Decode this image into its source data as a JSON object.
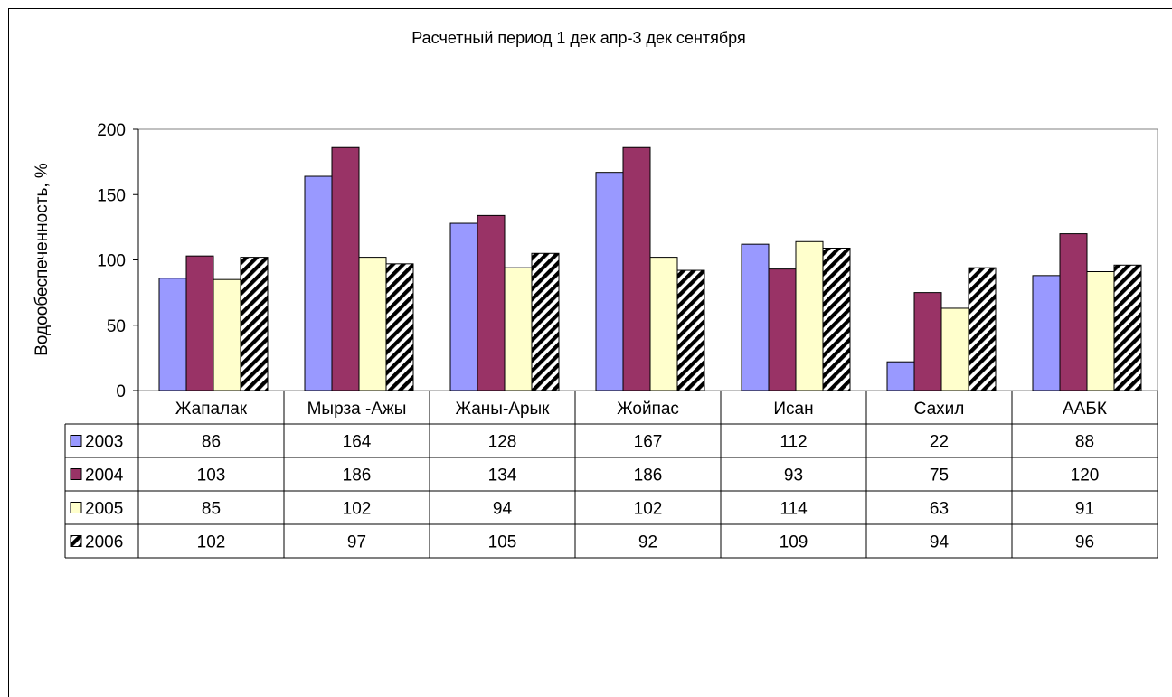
{
  "chart_data": {
    "type": "bar",
    "title": "Расчетный период 1 дек апр-3 дек сентября",
    "ylabel": "Водообеспеченность, %",
    "xlabel": "",
    "ylim": [
      0,
      200
    ],
    "yticks": [
      0,
      50,
      100,
      150,
      200
    ],
    "grid": false,
    "legend": "data-table-left",
    "categories": [
      "Жапалак",
      "Мырза -Ажы",
      "Жаны-Арык",
      "Жойпас",
      "Исан",
      "Сахил",
      "ААБК"
    ],
    "series": [
      {
        "name": "2003",
        "values": [
          86,
          164,
          128,
          167,
          112,
          22,
          88
        ],
        "color": "#9999ff",
        "pattern": "solid"
      },
      {
        "name": "2004",
        "values": [
          103,
          186,
          134,
          186,
          93,
          75,
          120
        ],
        "color": "#993366",
        "pattern": "solid"
      },
      {
        "name": "2005",
        "values": [
          85,
          102,
          94,
          102,
          114,
          63,
          91
        ],
        "color": "#ffffcc",
        "pattern": "solid"
      },
      {
        "name": "2006",
        "values": [
          102,
          97,
          105,
          92,
          109,
          94,
          96
        ],
        "color": "#000000",
        "pattern": "diagonal-stripes"
      }
    ]
  }
}
